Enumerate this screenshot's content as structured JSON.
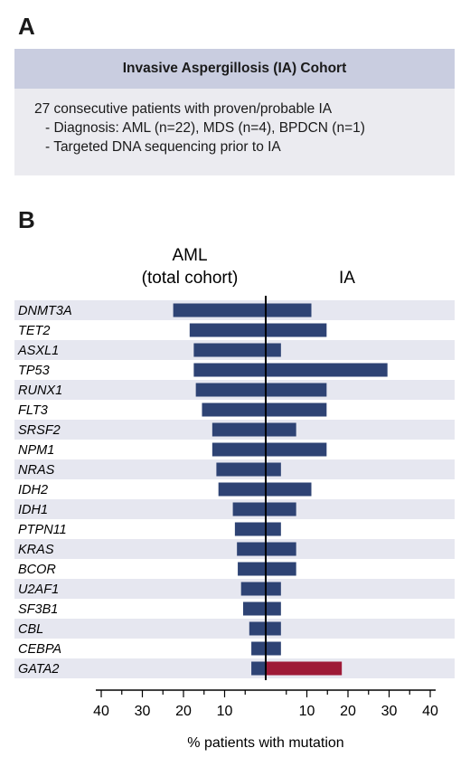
{
  "panel_a": {
    "letter": "A",
    "title": "Invasive Aspergillosis (IA) Cohort",
    "line1": "27 consecutive patients with proven/probable IA",
    "line2": "- Diagnosis: AML (n=22), MDS (n=4), BPDCN (n=1)",
    "line3": "- Targeted DNA sequencing prior to IA"
  },
  "panel_b": {
    "letter": "B"
  },
  "colors": {
    "aml_bar": "#2e4374",
    "ia_bar": "#2e4374",
    "highlight_bar": "#9e1a37",
    "row_stripe": "#e6e7f0"
  },
  "chart_data": {
    "type": "bar",
    "orientation": "horizontal-butterfly",
    "left_group_label_line1": "AML",
    "left_group_label_line2": "(total cohort)",
    "right_group_label": "IA",
    "xlabel": "% patients with mutation",
    "xlim": [
      -40,
      40
    ],
    "x_ticks": [
      -40,
      -30,
      -20,
      -10,
      10,
      20,
      30,
      40
    ],
    "x_tick_labels": [
      "40",
      "30",
      "20",
      "10",
      "10",
      "20",
      "30",
      "40"
    ],
    "categories": [
      "DNMT3A",
      "TET2",
      "ASXL1",
      "TP53",
      "RUNX1",
      "FLT3",
      "SRSF2",
      "NPM1",
      "NRAS",
      "IDH2",
      "IDH1",
      "PTPN11",
      "KRAS",
      "BCOR",
      "U2AF1",
      "SF3B1",
      "CBL",
      "CEBPA",
      "GATA2"
    ],
    "series": [
      {
        "name": "AML (total cohort)",
        "values": [
          22.5,
          18.5,
          17.5,
          17.5,
          17,
          15.5,
          13,
          13,
          12,
          11.5,
          8,
          7.5,
          7,
          6.8,
          6,
          5.5,
          4,
          3.5,
          3.5
        ]
      },
      {
        "name": "IA",
        "values": [
          11.1,
          14.8,
          3.7,
          29.6,
          14.8,
          14.8,
          7.4,
          14.8,
          3.7,
          11.1,
          7.4,
          3.7,
          7.4,
          7.4,
          3.7,
          3.7,
          3.7,
          3.7,
          18.5
        ]
      }
    ],
    "highlight_category": "GATA2"
  }
}
